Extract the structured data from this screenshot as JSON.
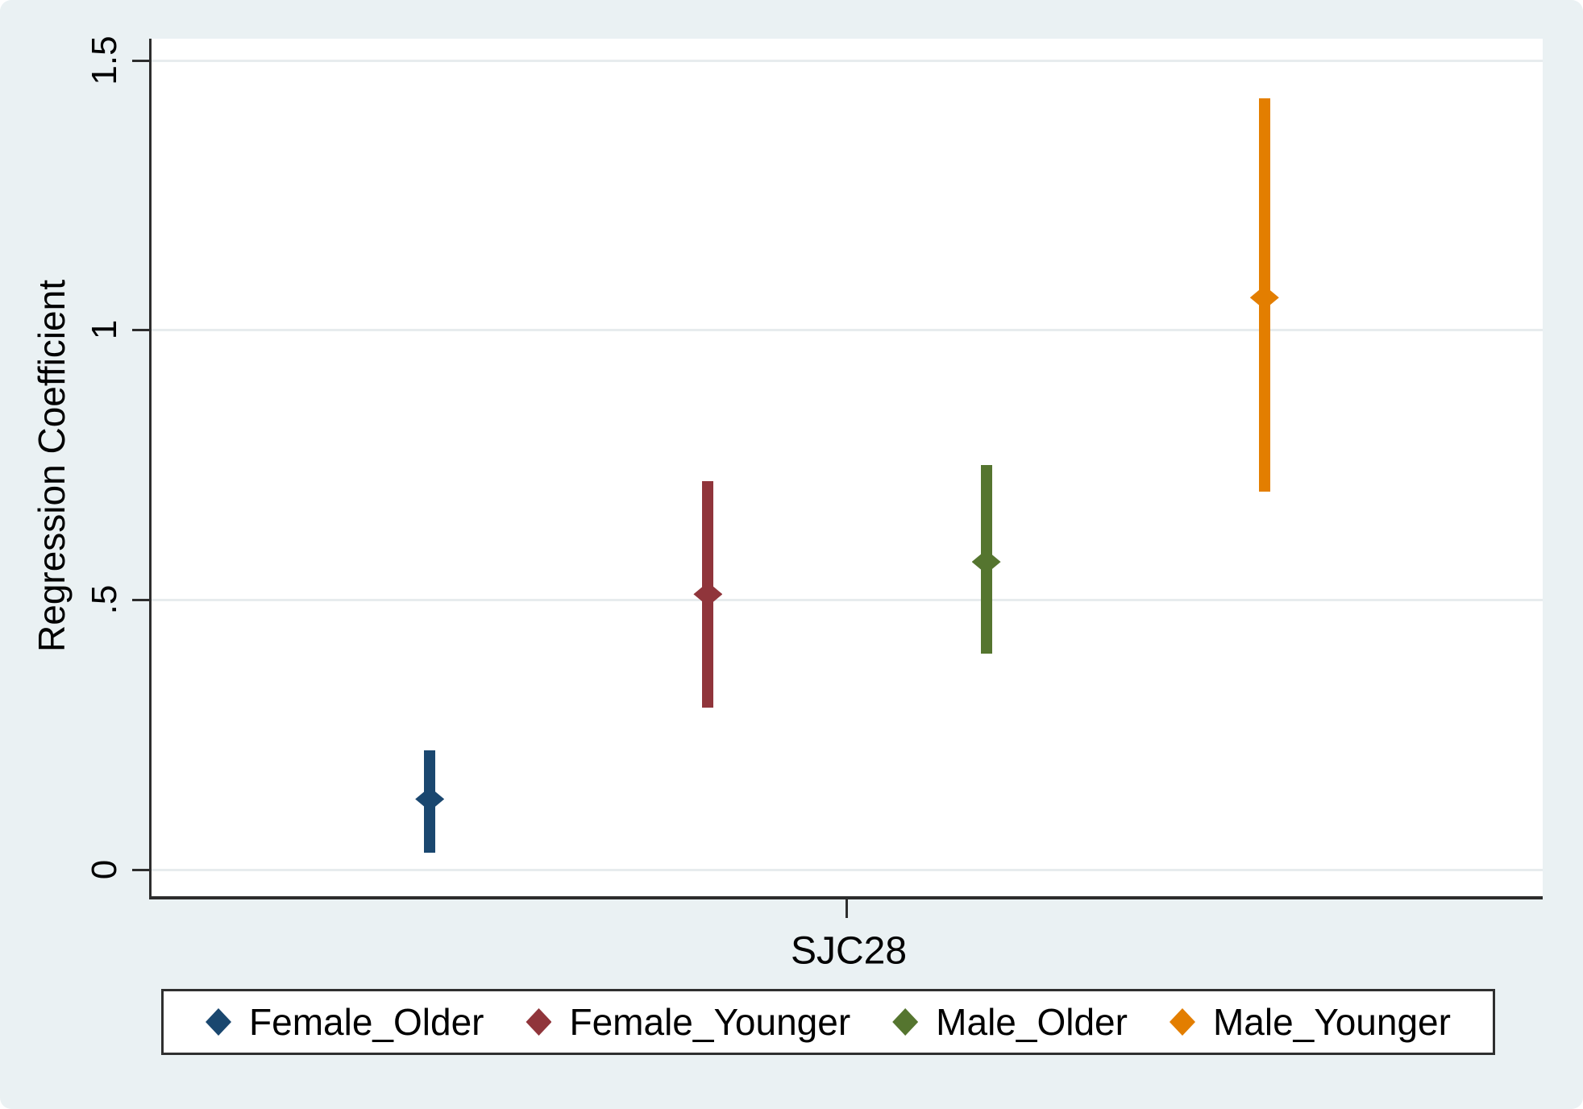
{
  "figure": {
    "background_color": "#eaf1f3",
    "plot_background": "#ffffff",
    "gridline_color": "#e7ecee",
    "axis_color": "#2d2d2d",
    "text_color": "#000000"
  },
  "chart_data": {
    "type": "scatter",
    "subtype": "coefficient-plot-with-95ci",
    "title": "",
    "xlabel": "SJC28",
    "ylabel": "Regression Coefficient",
    "x_categories": [
      "SJC28"
    ],
    "ylim": [
      -0.05,
      1.54
    ],
    "grid": true,
    "legend_position": "bottom",
    "marker": "diamond",
    "yticks": [
      {
        "value": 0,
        "label": "0"
      },
      {
        "value": 0.5,
        "label": ".5"
      },
      {
        "value": 1,
        "label": "1"
      },
      {
        "value": 1.5,
        "label": "1.5"
      }
    ],
    "series": [
      {
        "name": "Female_Older",
        "color": "#1a476f",
        "coef": 0.13,
        "ci_low": 0.03,
        "ci_high": 0.22
      },
      {
        "name": "Female_Younger",
        "color": "#90353b",
        "coef": 0.51,
        "ci_low": 0.3,
        "ci_high": 0.72
      },
      {
        "name": "Male_Older",
        "color": "#55752f",
        "coef": 0.57,
        "ci_low": 0.4,
        "ci_high": 0.75
      },
      {
        "name": "Male_Younger",
        "color": "#e37e00",
        "coef": 1.06,
        "ci_low": 0.7,
        "ci_high": 1.43
      }
    ]
  }
}
